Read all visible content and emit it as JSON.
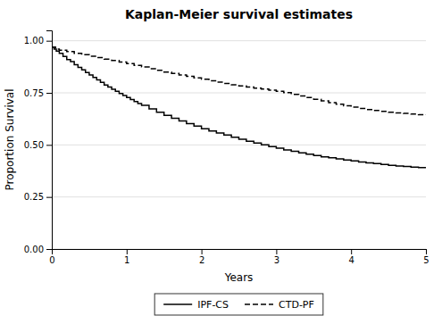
{
  "chart_data": {
    "type": "step",
    "title": "Kaplan-Meier survival estimates",
    "x_label": "Years",
    "y_label": "Proportion Survival",
    "xlim": [
      0,
      5
    ],
    "ylim": [
      0,
      1.05
    ],
    "xticks": [
      0,
      1,
      2,
      3,
      4,
      5
    ],
    "yticks": [
      {
        "value": 0.0,
        "label": "0.00"
      },
      {
        "value": 0.25,
        "label": "0.25"
      },
      {
        "value": 0.5,
        "label": "0.50"
      },
      {
        "value": 0.75,
        "label": "0.75"
      },
      {
        "value": 1.0,
        "label": "1.00"
      }
    ],
    "grid": true,
    "legend": "bottom",
    "series": [
      {
        "name": "IPF-CS",
        "color": "#000000",
        "line_style": "solid",
        "x": [
          0.0,
          0.03,
          0.06,
          0.1,
          0.15,
          0.2,
          0.25,
          0.3,
          0.35,
          0.4,
          0.45,
          0.5,
          0.55,
          0.6,
          0.65,
          0.7,
          0.75,
          0.8,
          0.85,
          0.9,
          0.95,
          1.0,
          1.05,
          1.1,
          1.15,
          1.2,
          1.3,
          1.4,
          1.5,
          1.6,
          1.7,
          1.8,
          1.9,
          2.0,
          2.1,
          2.2,
          2.3,
          2.4,
          2.5,
          2.6,
          2.7,
          2.8,
          2.9,
          3.0,
          3.1,
          3.2,
          3.3,
          3.4,
          3.5,
          3.6,
          3.7,
          3.8,
          3.9,
          4.0,
          4.1,
          4.2,
          4.3,
          4.4,
          4.5,
          4.6,
          4.7,
          4.8,
          4.9,
          5.0
        ],
        "values": [
          0.97,
          0.96,
          0.95,
          0.94,
          0.925,
          0.91,
          0.9,
          0.885,
          0.872,
          0.86,
          0.848,
          0.836,
          0.824,
          0.812,
          0.8,
          0.788,
          0.778,
          0.767,
          0.757,
          0.747,
          0.737,
          0.727,
          0.718,
          0.708,
          0.699,
          0.69,
          0.673,
          0.657,
          0.642,
          0.628,
          0.615,
          0.602,
          0.59,
          0.578,
          0.567,
          0.557,
          0.547,
          0.537,
          0.527,
          0.518,
          0.509,
          0.5,
          0.492,
          0.484,
          0.476,
          0.469,
          0.462,
          0.455,
          0.449,
          0.443,
          0.438,
          0.433,
          0.428,
          0.423,
          0.418,
          0.414,
          0.41,
          0.406,
          0.402,
          0.399,
          0.396,
          0.393,
          0.391,
          0.389
        ]
      },
      {
        "name": "CTD-PF",
        "color": "#000000",
        "line_style": "dashed",
        "x": [
          0.0,
          0.05,
          0.1,
          0.2,
          0.3,
          0.4,
          0.5,
          0.6,
          0.7,
          0.8,
          0.9,
          1.0,
          1.1,
          1.2,
          1.3,
          1.4,
          1.5,
          1.6,
          1.7,
          1.8,
          1.9,
          2.0,
          2.1,
          2.2,
          2.3,
          2.4,
          2.5,
          2.6,
          2.7,
          2.8,
          2.9,
          3.0,
          3.1,
          3.2,
          3.3,
          3.4,
          3.5,
          3.6,
          3.7,
          3.8,
          3.9,
          4.0,
          4.1,
          4.2,
          4.3,
          4.4,
          4.5,
          4.6,
          4.7,
          4.8,
          4.9,
          5.0
        ],
        "values": [
          0.97,
          0.96,
          0.955,
          0.948,
          0.94,
          0.933,
          0.926,
          0.919,
          0.912,
          0.905,
          0.898,
          0.89,
          0.882,
          0.874,
          0.866,
          0.858,
          0.85,
          0.843,
          0.836,
          0.829,
          0.822,
          0.815,
          0.808,
          0.801,
          0.795,
          0.789,
          0.783,
          0.778,
          0.773,
          0.768,
          0.763,
          0.758,
          0.751,
          0.743,
          0.735,
          0.727,
          0.719,
          0.711,
          0.703,
          0.695,
          0.688,
          0.681,
          0.675,
          0.67,
          0.665,
          0.661,
          0.657,
          0.654,
          0.651,
          0.648,
          0.645,
          0.643
        ]
      }
    ]
  }
}
